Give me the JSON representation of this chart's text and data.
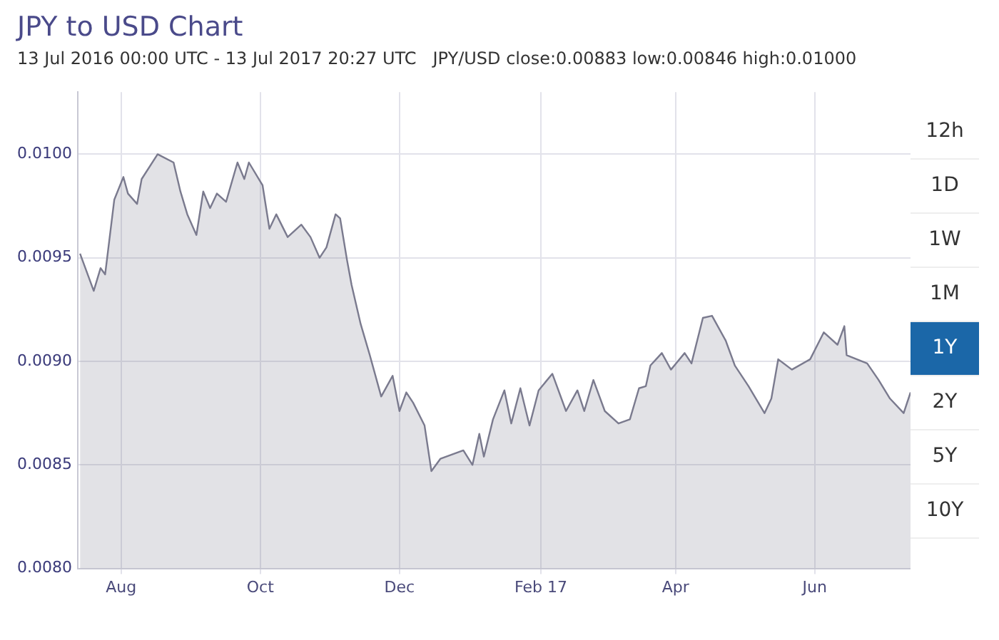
{
  "chart_data": {
    "type": "area",
    "title": "JPY to USD Chart",
    "subtitle": "13 Jul 2016 00:00 UTC - 13 Jul 2017 20:27 UTC   JPY/USD close:0.00883 low:0.00846 high:0.01000",
    "annotations": [
      "12h",
      "1D",
      "1W",
      "1M",
      "1Y",
      "2Y",
      "5Y",
      "10Y"
    ],
    "x": [
      "2016-07-14",
      "2016-07-20",
      "2016-07-23",
      "2016-07-25",
      "2016-07-29",
      "2016-08-02",
      "2016-08-04",
      "2016-08-08",
      "2016-08-10",
      "2016-08-17",
      "2016-08-24",
      "2016-08-27",
      "2016-08-30",
      "2016-09-03",
      "2016-09-06",
      "2016-09-09",
      "2016-09-12",
      "2016-09-16",
      "2016-09-21",
      "2016-09-24",
      "2016-09-26",
      "2016-10-02",
      "2016-10-05",
      "2016-10-08",
      "2016-10-13",
      "2016-10-19",
      "2016-10-23",
      "2016-10-27",
      "2016-10-30",
      "2016-11-03",
      "2016-11-05",
      "2016-11-08",
      "2016-11-10",
      "2016-11-14",
      "2016-11-18",
      "2016-11-23",
      "2016-11-28",
      "2016-12-01",
      "2016-12-04",
      "2016-12-07",
      "2016-12-12",
      "2016-12-15",
      "2016-12-19",
      "2016-12-29",
      "2017-01-02",
      "2017-01-05",
      "2017-01-07",
      "2017-01-11",
      "2017-01-16",
      "2017-01-19",
      "2017-01-23",
      "2017-01-27",
      "2017-01-31",
      "2017-02-06",
      "2017-02-12",
      "2017-02-17",
      "2017-02-20",
      "2017-02-24",
      "2017-03-01",
      "2017-03-07",
      "2017-03-12",
      "2017-03-16",
      "2017-03-19",
      "2017-03-21",
      "2017-03-26",
      "2017-03-30",
      "2017-04-05",
      "2017-04-08",
      "2017-04-13",
      "2017-04-17",
      "2017-04-23",
      "2017-04-27",
      "2017-05-03",
      "2017-05-10",
      "2017-05-13",
      "2017-05-16",
      "2017-05-22",
      "2017-05-30",
      "2017-06-05",
      "2017-06-11",
      "2017-06-14",
      "2017-06-15",
      "2017-06-24",
      "2017-06-29",
      "2017-07-04",
      "2017-07-10",
      "2017-07-13"
    ],
    "series": [
      {
        "color": "#7a7a8e",
        "values": [
          0.00952,
          0.00934,
          0.00945,
          0.00942,
          0.00978,
          0.00989,
          0.00981,
          0.00976,
          0.00988,
          0.01,
          0.00996,
          0.00982,
          0.00971,
          0.00961,
          0.00982,
          0.00974,
          0.00981,
          0.00977,
          0.00996,
          0.00988,
          0.00996,
          0.00985,
          0.00964,
          0.00971,
          0.0096,
          0.00966,
          0.0096,
          0.0095,
          0.00955,
          0.00971,
          0.00969,
          0.00949,
          0.00937,
          0.00918,
          0.00903,
          0.00883,
          0.00893,
          0.00876,
          0.00885,
          0.0088,
          0.00869,
          0.00847,
          0.00853,
          0.00857,
          0.0085,
          0.00865,
          0.00854,
          0.00872,
          0.00886,
          0.0087,
          0.00887,
          0.00869,
          0.00886,
          0.00894,
          0.00876,
          0.00886,
          0.00876,
          0.00891,
          0.00876,
          0.0087,
          0.00872,
          0.00887,
          0.00888,
          0.00898,
          0.00904,
          0.00896,
          0.00904,
          0.00899,
          0.00921,
          0.00922,
          0.0091,
          0.00898,
          0.00888,
          0.00875,
          0.00882,
          0.00901,
          0.00896,
          0.00901,
          0.00914,
          0.00908,
          0.00917,
          0.00903,
          0.00899,
          0.00891,
          0.00882,
          0.00875,
          0.00885
        ]
      }
    ],
    "xlim": [
      "2016-07-13",
      "2017-07-13"
    ],
    "xticks": [
      {
        "value": "2016-08-01",
        "label": "Aug"
      },
      {
        "value": "2016-10-01",
        "label": "Oct"
      },
      {
        "value": "2016-12-01",
        "label": "Dec"
      },
      {
        "value": "2017-02-01",
        "label": "Feb 17"
      },
      {
        "value": "2017-04-01",
        "label": "Apr"
      },
      {
        "value": "2017-06-01",
        "label": "Jun"
      }
    ],
    "ylim": [
      0.008,
      0.0103
    ],
    "yticks": [
      {
        "value": 0.008,
        "label": "0.0080"
      },
      {
        "value": 0.0085,
        "label": "0.0085"
      },
      {
        "value": 0.009,
        "label": "0.0090"
      },
      {
        "value": 0.0095,
        "label": "0.0095"
      },
      {
        "value": 0.01,
        "label": "0.0100"
      }
    ],
    "grid": true,
    "legend": false
  }
}
